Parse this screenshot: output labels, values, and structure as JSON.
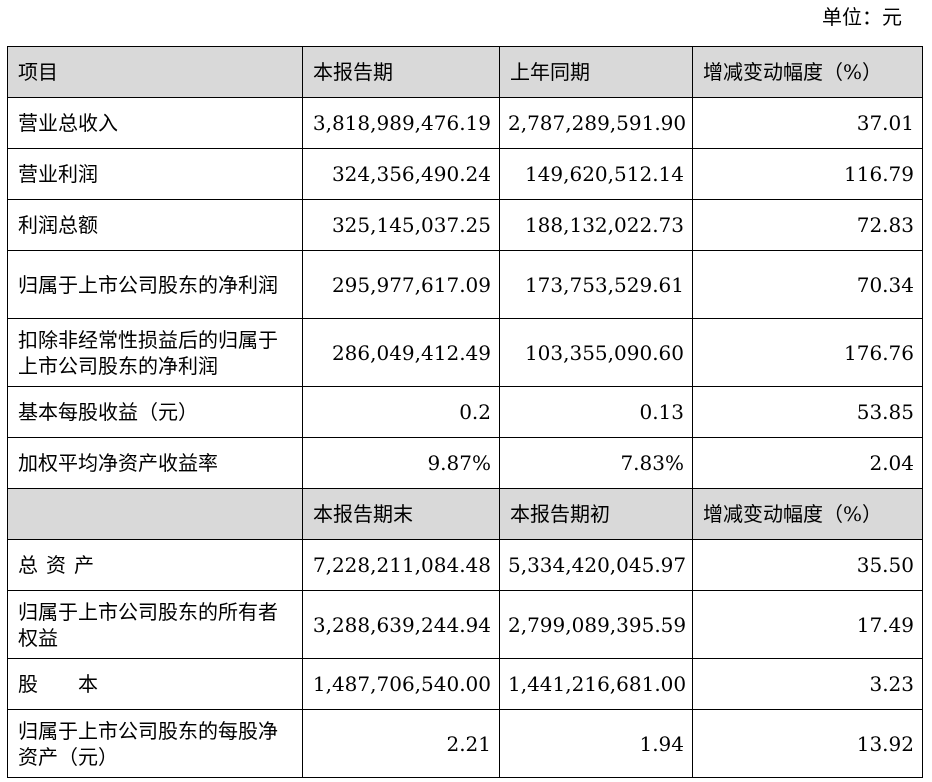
{
  "unit_label": "单位：元",
  "header1": [
    "项目",
    "本报告期",
    "上年同期",
    "增减变动幅度（%）"
  ],
  "rows1": [
    {
      "label": "营业总收入",
      "current": "3,818,989,476.19",
      "prior": "2,787,289,591.90",
      "change": "37.01"
    },
    {
      "label": "营业利润",
      "current": "324,356,490.24",
      "prior": "149,620,512.14",
      "change": "116.79"
    },
    {
      "label": "利润总额",
      "current": "325,145,037.25",
      "prior": "188,132,022.73",
      "change": "72.83"
    },
    {
      "label": "归属于上市公司股东的净利润",
      "current": "295,977,617.09",
      "prior": "173,753,529.61",
      "change": "70.34"
    },
    {
      "label": "扣除非经常性损益后的归属于上市公司股东的净利润",
      "current": "286,049,412.49",
      "prior": "103,355,090.60",
      "change": "176.76"
    },
    {
      "label": "基本每股收益（元）",
      "current": "0.2",
      "prior": "0.13",
      "change": "53.85"
    },
    {
      "label": "加权平均净资产收益率",
      "current": "9.87%",
      "prior": "7.83%",
      "change": "2.04"
    }
  ],
  "header2": [
    "",
    "本报告期末",
    "本报告期初",
    "增减变动幅度（%）"
  ],
  "rows2": [
    {
      "label": "总资产",
      "current": "7,228,211,084.48",
      "prior": "5,334,420,045.97",
      "change": "35.50"
    },
    {
      "label": "归属于上市公司股东的所有者权益",
      "current": "3,288,639,244.94",
      "prior": "2,799,089,395.59",
      "change": "17.49"
    },
    {
      "label_a": "股",
      "label_b": "本",
      "current": "1,487,706,540.00",
      "prior": "1,441,216,681.00",
      "change": "3.23"
    },
    {
      "label": "归属于上市公司股东的每股净资产（元）",
      "current": "2.21",
      "prior": "1.94",
      "change": "13.92"
    }
  ]
}
